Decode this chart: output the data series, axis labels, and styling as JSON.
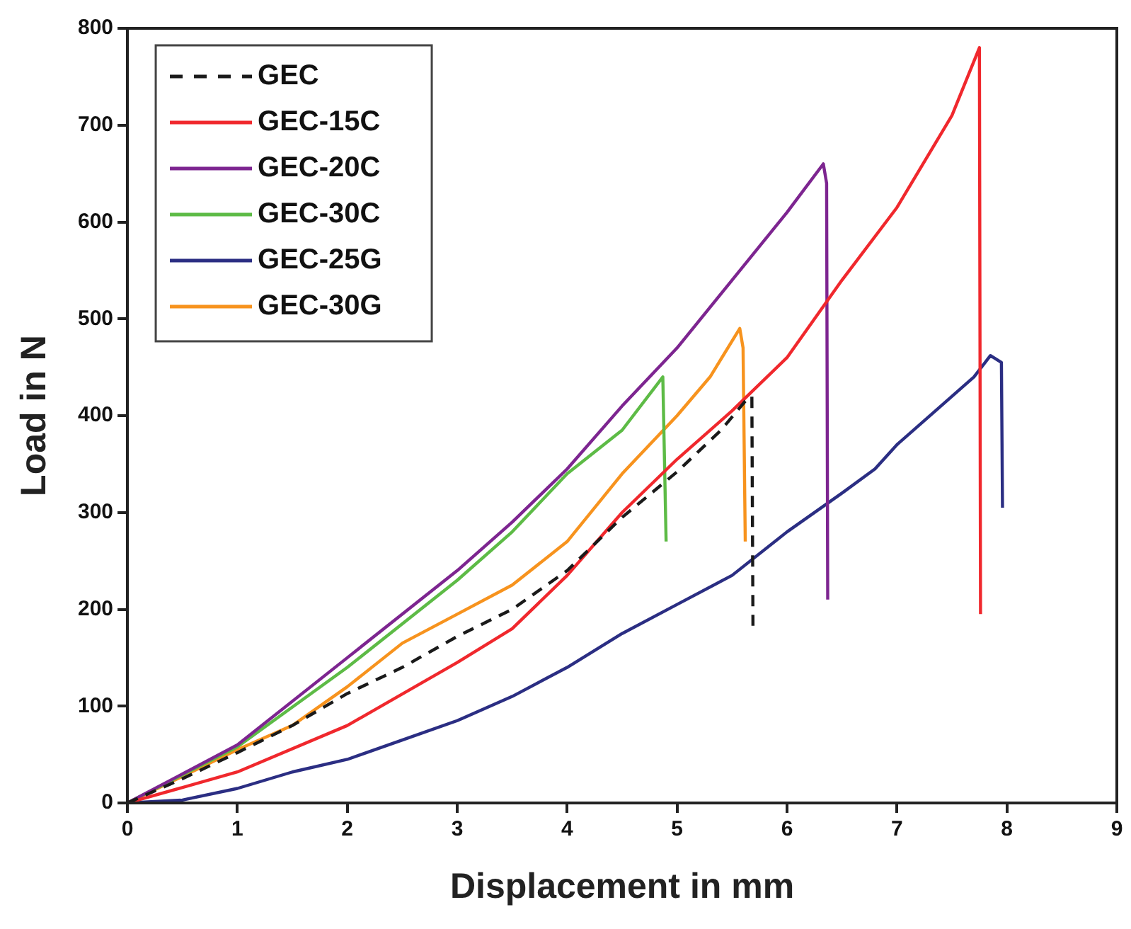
{
  "chart_data": {
    "type": "line",
    "xlabel": "Displacement in mm",
    "ylabel": "Load in N",
    "xlim": [
      0,
      9
    ],
    "xticks": [
      0,
      1,
      2,
      3,
      4,
      5,
      6,
      7,
      8,
      9
    ],
    "ylim": [
      0,
      800
    ],
    "yticks": [
      0,
      100,
      200,
      300,
      400,
      500,
      600,
      700,
      800
    ],
    "grid": false,
    "legend": "top left",
    "marker": "none",
    "series": [
      {
        "name": "GEC",
        "color": "#1a1a1a",
        "line_style": "dashed",
        "x": [
          0,
          0.5,
          1,
          1.5,
          2,
          2.5,
          3,
          3.5,
          4,
          4.5,
          5,
          5.4,
          5.62,
          5.68,
          5.69
        ],
        "values": [
          0,
          25,
          52,
          80,
          113,
          140,
          172,
          200,
          240,
          295,
          342,
          385,
          415,
          420,
          183
        ]
      },
      {
        "name": "GEC-15C",
        "color": "#f0282d",
        "line_style": "solid",
        "x": [
          0,
          1,
          2,
          3,
          3.5,
          4,
          4.5,
          5,
          5.5,
          6,
          6.5,
          7,
          7.5,
          7.75,
          7.76
        ],
        "values": [
          0,
          32,
          80,
          145,
          180,
          235,
          300,
          355,
          405,
          460,
          540,
          615,
          710,
          780,
          195
        ]
      },
      {
        "name": "GEC-20C",
        "color": "#7d2590",
        "line_style": "solid",
        "x": [
          0,
          1,
          2,
          3,
          3.5,
          4,
          4.5,
          5,
          5.5,
          6,
          6.33,
          6.36,
          6.37
        ],
        "values": [
          0,
          60,
          150,
          240,
          290,
          345,
          410,
          470,
          540,
          610,
          660,
          640,
          210
        ]
      },
      {
        "name": "GEC-30C",
        "color": "#5dbb46",
        "line_style": "solid",
        "x": [
          0,
          1,
          2,
          3,
          3.5,
          4,
          4.5,
          4.87,
          4.9
        ],
        "values": [
          0,
          58,
          140,
          230,
          280,
          340,
          385,
          440,
          270
        ]
      },
      {
        "name": "GEC-25G",
        "color": "#2b2e83",
        "line_style": "solid",
        "x": [
          0,
          0.5,
          1,
          1.5,
          2,
          2.5,
          3,
          3.5,
          4,
          4.5,
          5,
          5.5,
          6,
          6.5,
          6.8,
          7,
          7.4,
          7.7,
          7.85,
          7.95,
          7.96
        ],
        "values": [
          0,
          3,
          15,
          32,
          45,
          65,
          85,
          110,
          140,
          175,
          205,
          235,
          280,
          320,
          345,
          370,
          410,
          440,
          462,
          455,
          305
        ]
      },
      {
        "name": "GEC-30G",
        "color": "#f7931e",
        "line_style": "solid",
        "x": [
          0,
          1,
          1.5,
          2,
          2.5,
          3,
          3.5,
          4,
          4.5,
          5,
          5.3,
          5.57,
          5.6,
          5.62
        ],
        "values": [
          0,
          55,
          80,
          120,
          165,
          195,
          225,
          270,
          340,
          400,
          440,
          490,
          470,
          270
        ]
      }
    ]
  }
}
